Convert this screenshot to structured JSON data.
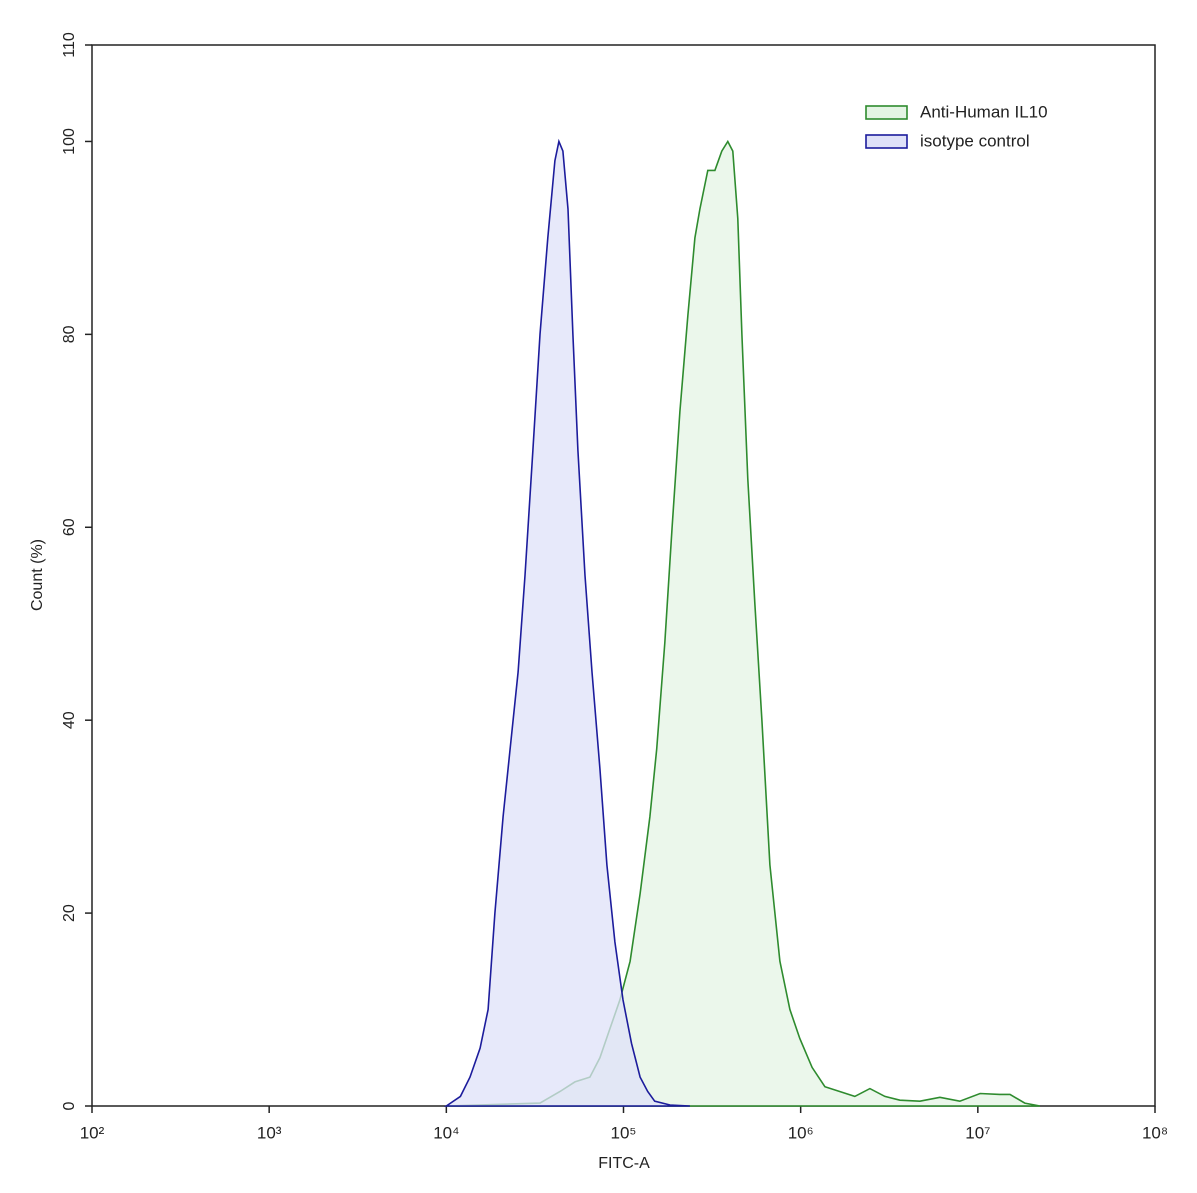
{
  "chart_data": {
    "type": "histogram-overlay",
    "xlabel": "FITC-A",
    "ylabel": "Count  (%)",
    "xscale": "log",
    "xlim": [
      100,
      100000000
    ],
    "xticks": [
      {
        "value": 100,
        "label": "10²"
      },
      {
        "value": 1000,
        "label": "10³"
      },
      {
        "value": 10000,
        "label": "10⁴"
      },
      {
        "value": 100000,
        "label": "10⁵"
      },
      {
        "value": 1000000,
        "label": "10⁶"
      },
      {
        "value": 10000000,
        "label": "10⁷"
      },
      {
        "value": 100000000,
        "label": "10⁸"
      }
    ],
    "ylim": [
      0,
      110
    ],
    "yticks": [
      0,
      20,
      40,
      60,
      80,
      100,
      110
    ],
    "legend": "upper right",
    "series": [
      {
        "name": "Anti-Human IL10",
        "color": "#2e8b2e",
        "fill": "#e4f4e4",
        "x": [
          10000,
          33800,
          43800,
          53200,
          64600,
          73600,
          83800,
          95400,
          109000,
          124000,
          141000,
          154000,
          171000,
          188000,
          208000,
          231000,
          253000,
          270000,
          299000,
          328000,
          359000,
          388000,
          414000,
          442000,
          466000,
          503000,
          552000,
          604000,
          670000,
          763000,
          869000,
          989000,
          1160000,
          1370000,
          1660000,
          2020000,
          2460000,
          2990000,
          3630000,
          4710000,
          6110000,
          7910000,
          10300000,
          13300000,
          15200000,
          18400000,
          22400000
        ],
        "values": [
          0,
          0.3,
          1.5,
          2.5,
          3,
          5,
          8,
          11,
          15,
          22,
          30,
          37,
          48,
          60,
          72,
          82,
          90,
          93,
          97,
          97,
          99,
          100,
          99,
          92,
          80,
          65,
          52,
          40,
          25,
          15,
          10,
          7,
          4,
          2,
          1.5,
          1,
          1.8,
          1,
          0.6,
          0.5,
          0.9,
          0.5,
          1.3,
          1.2,
          1.2,
          0.3,
          0
        ]
      },
      {
        "name": "isotype control",
        "color": "#1c1c9c",
        "fill": "#dfe1f8",
        "x": [
          10000,
          12000,
          13600,
          15500,
          17200,
          18800,
          20900,
          22900,
          25400,
          27800,
          30800,
          33800,
          37400,
          41000,
          43200,
          45500,
          48600,
          51800,
          55300,
          60600,
          66400,
          73600,
          80600,
          89400,
          99300,
          111000,
          124000,
          137000,
          150000,
          183000,
          237000
        ],
        "values": [
          0,
          1,
          3,
          6,
          10,
          20,
          30,
          37,
          45,
          55,
          68,
          80,
          90,
          98,
          100,
          99,
          93,
          80,
          68,
          55,
          45,
          35,
          25,
          17,
          11,
          6.5,
          3,
          1.5,
          0.5,
          0.1,
          0
        ]
      }
    ]
  }
}
